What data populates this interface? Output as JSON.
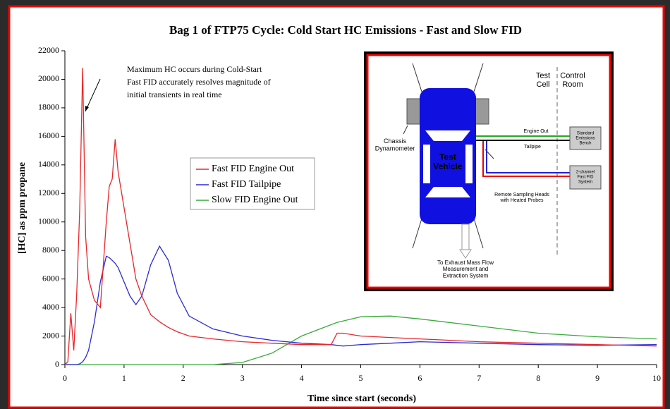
{
  "chart_data": {
    "type": "line",
    "title": "Bag 1 of FTP75 Cycle: Cold Start HC Emissions - Fast and Slow FID",
    "x_label": "Time since start (seconds)",
    "y_label": "[HC] as ppm propane",
    "annotation": [
      "Maximum HC occurs during Cold-Start",
      "Fast FID accurately resolves magnitude of",
      "initial transients in real time"
    ],
    "x": [
      0,
      0.05,
      0.1,
      0.15,
      0.2,
      0.25,
      0.3,
      0.35,
      0.4,
      0.5,
      0.6,
      0.7,
      0.75,
      0.8,
      0.85,
      0.9,
      1.0,
      1.1,
      1.2,
      1.3,
      1.45,
      1.6,
      1.75,
      1.9,
      2.1,
      2.5,
      3,
      3.5,
      4,
      4.5,
      4.6,
      4.7,
      5,
      5.5,
      6,
      7,
      8,
      9,
      10
    ],
    "series": [
      {
        "name": "Fast FID Engine Out",
        "color": "#e8262a",
        "values": [
          0,
          200,
          3600,
          1000,
          5000,
          10800,
          20800,
          9000,
          6000,
          4500,
          4000,
          10000,
          12500,
          13000,
          15800,
          13500,
          11000,
          8500,
          6000,
          4800,
          3500,
          3000,
          2600,
          2300,
          2000,
          1800,
          1600,
          1500,
          1400,
          1400,
          2200,
          2200,
          2000,
          1900,
          1800,
          1600,
          1500,
          1400,
          1300
        ]
      },
      {
        "name": "Fast FID Tailpipe",
        "color": "#2b2bd6",
        "values": [
          0,
          0,
          0,
          0,
          0,
          50,
          200,
          500,
          1000,
          3000,
          5800,
          7600,
          7500,
          7300,
          7100,
          6800,
          5800,
          4800,
          4200,
          4800,
          7000,
          8300,
          7300,
          5000,
          3400,
          2500,
          2000,
          1700,
          1500,
          1400,
          1350,
          1300,
          1400,
          1500,
          1600,
          1500,
          1400,
          1350,
          1400
        ]
      },
      {
        "name": "Slow FID Engine Out",
        "color": "#3aaa3a",
        "values": [
          0,
          0,
          0,
          0,
          0,
          0,
          0,
          0,
          0,
          0,
          0,
          0,
          0,
          0,
          0,
          0,
          0,
          0,
          0,
          0,
          0,
          0,
          0,
          0,
          0,
          0,
          150,
          800,
          2000,
          2800,
          2950,
          3050,
          3350,
          3400,
          3200,
          2700,
          2200,
          1950,
          1800
        ]
      }
    ],
    "xlim": [
      0,
      10
    ],
    "xticks": [
      0,
      1,
      2,
      3,
      4,
      5,
      6,
      7,
      8,
      9,
      10
    ],
    "ylim": [
      0,
      22000
    ],
    "yticks": [
      0,
      2000,
      4000,
      6000,
      8000,
      10000,
      12000,
      14000,
      16000,
      18000,
      20000,
      22000
    ],
    "grid": false
  },
  "inset": {
    "test_cell": [
      "Test",
      "Cell"
    ],
    "control_room": [
      "Control",
      "Room"
    ],
    "engine_out": "Engine Out",
    "tailpipe": "Tailpipe",
    "emissions_bench": [
      "Standard",
      "Emissions",
      "Bench"
    ],
    "fid_system": [
      "2-channel",
      "Fast FID",
      "System"
    ],
    "dynamometer": [
      "Chassis",
      "Dynamometer"
    ],
    "vehicle": [
      "Test",
      "Vehicle"
    ],
    "sampling_heads": [
      "Remote Sampling Heads",
      "with Heated Probes"
    ],
    "exhaust": [
      "To Exhaust Mass Flow",
      "Measurement and",
      "Extraction System"
    ]
  }
}
